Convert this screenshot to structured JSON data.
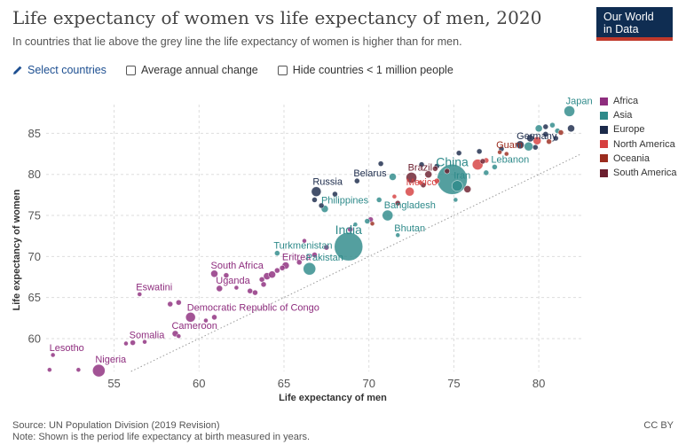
{
  "header": {
    "title": "Life expectancy of women vs life expectancy of men, 2020",
    "subtitle": "In countries that lie above the grey line the life expectancy of women is higher than for men.",
    "logo_line1": "Our World",
    "logo_line2": "in Data"
  },
  "controls": {
    "select_countries": "Select countries",
    "average_annual_change": "Average annual change",
    "hide_small": "Hide countries < 1 million people"
  },
  "footer": {
    "source": "Source: UN Population Division (2019 Revision)",
    "note": "Note: Shown is the period life expectancy at birth measured in years.",
    "license": "CC BY"
  },
  "colors": {
    "Africa": "#8e2d7e",
    "Asia": "#2e8a8a",
    "Europe": "#1b2a4a",
    "North America": "#d63f3f",
    "Oceania": "#9b2c1e",
    "South America": "#6b1e2e"
  },
  "chart_data": {
    "type": "scatter",
    "xlabel": "Life expectancy of men",
    "ylabel": "Life expectancy of women",
    "xlim": [
      51,
      82.5
    ],
    "ylim": [
      56,
      88.5
    ],
    "xticks": [
      55,
      60,
      65,
      70,
      75,
      80
    ],
    "yticks": [
      60,
      65,
      70,
      75,
      80,
      85
    ],
    "grid": true,
    "legend_position": "right",
    "reference_line": "y = x",
    "legend": [
      "Africa",
      "Asia",
      "Europe",
      "North America",
      "Oceania",
      "South America"
    ],
    "points": [
      {
        "label": "Nigeria",
        "region": "Africa",
        "x": 54.1,
        "y": 56.1,
        "size": 7
      },
      {
        "label": "Lesotho",
        "region": "Africa",
        "x": 51.4,
        "y": 58.0,
        "size": 2.5
      },
      {
        "label": "",
        "region": "Africa",
        "x": 51.2,
        "y": 56.2,
        "size": 2.5
      },
      {
        "label": "",
        "region": "Africa",
        "x": 52.9,
        "y": 56.2,
        "size": 2.5
      },
      {
        "label": "Somalia",
        "region": "Africa",
        "x": 56.1,
        "y": 59.5,
        "size": 3
      },
      {
        "label": "",
        "region": "Africa",
        "x": 56.8,
        "y": 59.6,
        "size": 2.5
      },
      {
        "label": "",
        "region": "Africa",
        "x": 55.7,
        "y": 59.4,
        "size": 2.5
      },
      {
        "label": "Cameroon",
        "region": "Africa",
        "x": 58.6,
        "y": 60.6,
        "size": 3.5
      },
      {
        "label": "",
        "region": "Africa",
        "x": 58.8,
        "y": 60.3,
        "size": 2.5
      },
      {
        "label": "Eswatini",
        "region": "Africa",
        "x": 56.5,
        "y": 65.4,
        "size": 2.5
      },
      {
        "label": "",
        "region": "Africa",
        "x": 58.3,
        "y": 64.2,
        "size": 3
      },
      {
        "label": "",
        "region": "Africa",
        "x": 58.8,
        "y": 64.4,
        "size": 3
      },
      {
        "label": "Democratic Republic of Congo",
        "region": "Africa",
        "x": 59.5,
        "y": 62.6,
        "size": 5.5
      },
      {
        "label": "",
        "region": "Africa",
        "x": 60.4,
        "y": 62.2,
        "size": 2.5
      },
      {
        "label": "",
        "region": "Africa",
        "x": 60.9,
        "y": 62.6,
        "size": 3
      },
      {
        "label": "Uganda",
        "region": "Africa",
        "x": 61.2,
        "y": 66.1,
        "size": 3.5
      },
      {
        "label": "South Africa",
        "region": "Africa",
        "x": 60.9,
        "y": 67.9,
        "size": 4
      },
      {
        "label": "",
        "region": "Africa",
        "x": 61.6,
        "y": 67.7,
        "size": 3
      },
      {
        "label": "",
        "region": "Africa",
        "x": 62.2,
        "y": 66.2,
        "size": 2.5
      },
      {
        "label": "",
        "region": "Africa",
        "x": 63.0,
        "y": 65.8,
        "size": 3
      },
      {
        "label": "",
        "region": "Africa",
        "x": 63.3,
        "y": 65.6,
        "size": 3
      },
      {
        "label": "",
        "region": "Africa",
        "x": 63.7,
        "y": 67.2,
        "size": 3
      },
      {
        "label": "",
        "region": "Africa",
        "x": 64.0,
        "y": 67.6,
        "size": 4
      },
      {
        "label": "",
        "region": "Africa",
        "x": 64.3,
        "y": 67.8,
        "size": 4
      },
      {
        "label": "",
        "region": "Africa",
        "x": 63.8,
        "y": 66.6,
        "size": 3
      },
      {
        "label": "Eritrea",
        "region": "Africa",
        "x": 65.1,
        "y": 68.9,
        "size": 4
      },
      {
        "label": "",
        "region": "Africa",
        "x": 64.6,
        "y": 68.3,
        "size": 3
      },
      {
        "label": "",
        "region": "Africa",
        "x": 64.9,
        "y": 68.6,
        "size": 3
      },
      {
        "label": "",
        "region": "Africa",
        "x": 65.9,
        "y": 69.3,
        "size": 3
      },
      {
        "label": "",
        "region": "Africa",
        "x": 66.8,
        "y": 70.2,
        "size": 3
      },
      {
        "label": "",
        "region": "Africa",
        "x": 67.5,
        "y": 71.1,
        "size": 3
      },
      {
        "label": "",
        "region": "Africa",
        "x": 70.1,
        "y": 74.5,
        "size": 3
      },
      {
        "label": "",
        "region": "Africa",
        "x": 68.9,
        "y": 73.3,
        "size": 3
      },
      {
        "label": "",
        "region": "Africa",
        "x": 66.2,
        "y": 71.9,
        "size": 2.5
      },
      {
        "label": "Pakistan",
        "region": "Asia",
        "x": 66.5,
        "y": 68.5,
        "size": 7
      },
      {
        "label": "India",
        "region": "Asia",
        "x": 68.8,
        "y": 71.2,
        "size": 16
      },
      {
        "label": "Turkmenistan",
        "region": "Asia",
        "x": 64.6,
        "y": 70.4,
        "size": 3
      },
      {
        "label": "Bhutan",
        "region": "Asia",
        "x": 71.7,
        "y": 72.6,
        "size": 2.5
      },
      {
        "label": "Bangladesh",
        "region": "Asia",
        "x": 71.1,
        "y": 75.0,
        "size": 6
      },
      {
        "label": "Philippines",
        "region": "Asia",
        "x": 67.4,
        "y": 75.8,
        "size": 4
      },
      {
        "label": "",
        "region": "Asia",
        "x": 69.9,
        "y": 74.3,
        "size": 3
      },
      {
        "label": "",
        "region": "Asia",
        "x": 69.2,
        "y": 73.9,
        "size": 2.5
      },
      {
        "label": "",
        "region": "Asia",
        "x": 70.6,
        "y": 76.9,
        "size": 3
      },
      {
        "label": "",
        "region": "Asia",
        "x": 71.4,
        "y": 79.7,
        "size": 4
      },
      {
        "label": "China",
        "region": "Asia",
        "x": 74.9,
        "y": 79.4,
        "size": 17
      },
      {
        "label": "Iran",
        "region": "Asia",
        "x": 75.2,
        "y": 78.6,
        "size": 6
      },
      {
        "label": "Lebanon",
        "region": "Asia",
        "x": 77.4,
        "y": 80.9,
        "size": 3
      },
      {
        "label": "",
        "region": "Asia",
        "x": 76.9,
        "y": 80.2,
        "size": 3
      },
      {
        "label": "",
        "region": "Asia",
        "x": 75.1,
        "y": 76.9,
        "size": 2.5
      },
      {
        "label": "",
        "region": "Asia",
        "x": 79.4,
        "y": 83.4,
        "size": 5
      },
      {
        "label": "",
        "region": "Asia",
        "x": 80.0,
        "y": 85.6,
        "size": 4
      },
      {
        "label": "Japan",
        "region": "Asia",
        "x": 81.8,
        "y": 87.7,
        "size": 6
      },
      {
        "label": "",
        "region": "Asia",
        "x": 80.8,
        "y": 86.0,
        "size": 3
      },
      {
        "label": "",
        "region": "Asia",
        "x": 81.1,
        "y": 85.3,
        "size": 3
      },
      {
        "label": "Russia",
        "region": "Europe",
        "x": 66.9,
        "y": 77.9,
        "size": 5.5
      },
      {
        "label": "",
        "region": "Europe",
        "x": 66.8,
        "y": 76.9,
        "size": 3
      },
      {
        "label": "",
        "region": "Europe",
        "x": 67.2,
        "y": 76.2,
        "size": 3
      },
      {
        "label": "",
        "region": "Europe",
        "x": 68.0,
        "y": 77.6,
        "size": 3
      },
      {
        "label": "Belarus",
        "region": "Europe",
        "x": 69.3,
        "y": 79.2,
        "size": 3
      },
      {
        "label": "",
        "region": "Europe",
        "x": 70.7,
        "y": 81.3,
        "size": 3
      },
      {
        "label": "",
        "region": "Europe",
        "x": 73.1,
        "y": 81.2,
        "size": 3
      },
      {
        "label": "",
        "region": "Europe",
        "x": 74.0,
        "y": 81.0,
        "size": 3
      },
      {
        "label": "",
        "region": "Europe",
        "x": 76.5,
        "y": 82.8,
        "size": 3
      },
      {
        "label": "",
        "region": "Europe",
        "x": 77.8,
        "y": 83.1,
        "size": 3
      },
      {
        "label": "Germany",
        "region": "Europe",
        "x": 78.9,
        "y": 83.6,
        "size": 4.5
      },
      {
        "label": "",
        "region": "Europe",
        "x": 79.5,
        "y": 84.4,
        "size": 4
      },
      {
        "label": "",
        "region": "Europe",
        "x": 80.4,
        "y": 84.9,
        "size": 3
      },
      {
        "label": "",
        "region": "Europe",
        "x": 81.0,
        "y": 84.4,
        "size": 3
      },
      {
        "label": "",
        "region": "Europe",
        "x": 81.9,
        "y": 85.6,
        "size": 4
      },
      {
        "label": "",
        "region": "Europe",
        "x": 80.4,
        "y": 85.8,
        "size": 3
      },
      {
        "label": "",
        "region": "Europe",
        "x": 79.8,
        "y": 83.3,
        "size": 3
      },
      {
        "label": "",
        "region": "Europe",
        "x": 75.3,
        "y": 82.6,
        "size": 3
      },
      {
        "label": "Mexico",
        "region": "North America",
        "x": 72.4,
        "y": 77.9,
        "size": 5
      },
      {
        "label": "",
        "region": "North America",
        "x": 74.0,
        "y": 79.2,
        "size": 3
      },
      {
        "label": "",
        "region": "North America",
        "x": 76.4,
        "y": 81.2,
        "size": 6
      },
      {
        "label": "",
        "region": "North America",
        "x": 76.9,
        "y": 81.7,
        "size": 3
      },
      {
        "label": "",
        "region": "North America",
        "x": 79.9,
        "y": 84.1,
        "size": 4.5
      },
      {
        "label": "",
        "region": "North America",
        "x": 73.0,
        "y": 79.0,
        "size": 2.5
      },
      {
        "label": "",
        "region": "North America",
        "x": 71.5,
        "y": 77.3,
        "size": 2.5
      },
      {
        "label": "Guam",
        "region": "Oceania",
        "x": 77.7,
        "y": 82.7,
        "size": 2.5
      },
      {
        "label": "",
        "region": "Oceania",
        "x": 78.1,
        "y": 82.5,
        "size": 2.5
      },
      {
        "label": "",
        "region": "Oceania",
        "x": 81.3,
        "y": 85.1,
        "size": 3
      },
      {
        "label": "",
        "region": "Oceania",
        "x": 80.6,
        "y": 84.0,
        "size": 3
      },
      {
        "label": "",
        "region": "Oceania",
        "x": 70.2,
        "y": 74.0,
        "size": 2.5
      },
      {
        "label": "Brazil",
        "region": "South America",
        "x": 72.5,
        "y": 79.6,
        "size": 6
      },
      {
        "label": "",
        "region": "South America",
        "x": 73.5,
        "y": 80.0,
        "size": 4
      },
      {
        "label": "",
        "region": "South America",
        "x": 74.6,
        "y": 80.4,
        "size": 3
      },
      {
        "label": "",
        "region": "South America",
        "x": 73.9,
        "y": 80.7,
        "size": 3
      },
      {
        "label": "",
        "region": "South America",
        "x": 76.7,
        "y": 81.6,
        "size": 3
      },
      {
        "label": "",
        "region": "South America",
        "x": 73.2,
        "y": 78.7,
        "size": 3
      },
      {
        "label": "",
        "region": "South America",
        "x": 71.7,
        "y": 76.5,
        "size": 3
      },
      {
        "label": "",
        "region": "South America",
        "x": 75.8,
        "y": 78.2,
        "size": 4
      }
    ]
  }
}
